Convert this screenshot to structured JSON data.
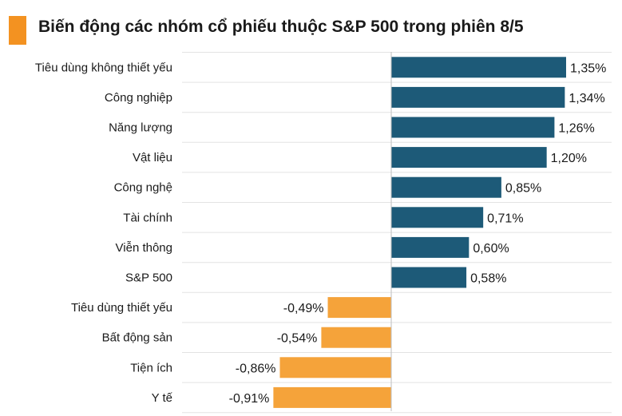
{
  "chart_data": {
    "type": "bar",
    "orientation": "horizontal",
    "title": "Biến động các nhóm cổ phiếu thuộc S&P 500 trong phiên 8/5",
    "categories": [
      "Tiêu dùng không thiết yếu",
      "Công nghiệp",
      "Năng lượng",
      "Vật liệu",
      "Công nghệ",
      "Tài chính",
      "Viễn thông",
      "S&P 500",
      "Tiêu dùng thiết yếu",
      "Bất động sản",
      "Tiện ích",
      "Y tế"
    ],
    "values": [
      1.35,
      1.34,
      1.26,
      1.2,
      0.85,
      0.71,
      0.6,
      0.58,
      -0.49,
      -0.54,
      -0.86,
      -0.91
    ],
    "value_labels": [
      "1,35%",
      "1,34%",
      "1,26%",
      "1,20%",
      "0,85%",
      "0,71%",
      "0,60%",
      "0,58%",
      "-0,49%",
      "-0,54%",
      "-0,86%",
      "-0,91%"
    ],
    "xlim": [
      -1.2,
      1.55
    ],
    "grid": true,
    "legend": "none",
    "colors": {
      "positive": "#1d5a78",
      "negative": "#f5a33a",
      "title_accent": "#f39221",
      "grid": "#e3e3e3",
      "axis": "#bdbdbd"
    }
  }
}
